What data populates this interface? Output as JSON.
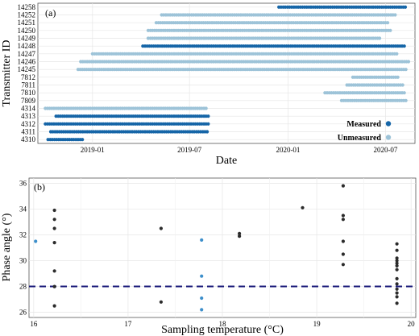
{
  "colors": {
    "measured": "#1565a7",
    "unmeasured": "#9dc3d8",
    "black_point": "#2b2b2b",
    "blue_point": "#3d8fcb",
    "grid": "#e6e6e6",
    "hline": "#1a1a7a"
  },
  "chart_data": [
    {
      "type": "scatter",
      "panel_label": "(a)",
      "xlabel": "Date",
      "ylabel": "Transmitter ID",
      "x_ticks": [
        "2019-01",
        "2019-07",
        "2020-01",
        "2020-07"
      ],
      "x_tick_dates": [
        "2019-01-01",
        "2019-07-01",
        "2020-01-01",
        "2020-07-01"
      ],
      "xlim": [
        "2018-09-21",
        "2020-08-25"
      ],
      "y_categories": [
        "4310",
        "4311",
        "4312",
        "4313",
        "4314",
        "7809",
        "7810",
        "7811",
        "7812",
        "14245",
        "14246",
        "14247",
        "14248",
        "14249",
        "14250",
        "14251",
        "14252",
        "14258"
      ],
      "legend": {
        "position": "bottom-right",
        "entries": [
          "Measured",
          "Unmeasured"
        ]
      },
      "series": [
        {
          "name": "Measured",
          "segments": [
            {
              "id": "14258",
              "from": "2019-12-15",
              "to": "2020-08-10"
            },
            {
              "id": "14248",
              "from": "2019-04-05",
              "to": "2020-08-08"
            },
            {
              "id": "4313",
              "from": "2018-10-25",
              "to": "2019-08-05"
            },
            {
              "id": "4312",
              "from": "2018-10-05",
              "to": "2019-08-05"
            },
            {
              "id": "4311",
              "from": "2018-10-15",
              "to": "2019-08-05"
            },
            {
              "id": "4310",
              "from": "2018-10-10",
              "to": "2018-12-15"
            }
          ]
        },
        {
          "name": "Unmeasured",
          "segments": [
            {
              "id": "14252",
              "from": "2019-05-10",
              "to": "2020-07-20"
            },
            {
              "id": "14251",
              "from": "2019-04-30",
              "to": "2020-07-05"
            },
            {
              "id": "14250",
              "from": "2019-04-15",
              "to": "2020-07-10"
            },
            {
              "id": "14249",
              "from": "2019-04-15",
              "to": "2020-06-20"
            },
            {
              "id": "14247",
              "from": "2019-01-01",
              "to": "2020-07-25"
            },
            {
              "id": "14246",
              "from": "2018-12-10",
              "to": "2020-08-15"
            },
            {
              "id": "14245",
              "from": "2018-12-05",
              "to": "2020-08-10"
            },
            {
              "id": "7812",
              "from": "2020-05-01",
              "to": "2020-07-25"
            },
            {
              "id": "7811",
              "from": "2020-04-20",
              "to": "2020-08-05"
            },
            {
              "id": "7810",
              "from": "2020-03-10",
              "to": "2020-08-05"
            },
            {
              "id": "7809",
              "from": "2020-04-10",
              "to": "2020-08-10"
            },
            {
              "id": "4314",
              "from": "2018-10-05",
              "to": "2019-08-01"
            }
          ]
        }
      ]
    },
    {
      "type": "scatter",
      "panel_label": "(b)",
      "xlabel": "Sampling temperature (°C)",
      "ylabel": "Phase angle (°)",
      "xlim": [
        15.95,
        20.05
      ],
      "ylim": [
        25.6,
        36.4
      ],
      "x_ticks": [
        "16",
        "17",
        "18",
        "19",
        "20"
      ],
      "y_ticks": [
        "26",
        "28",
        "30",
        "32",
        "34",
        "36"
      ],
      "hline": 28,
      "series": [
        {
          "name": "",
          "points": [
            [
              16.22,
              33.9
            ],
            [
              16.22,
              33.2
            ],
            [
              16.22,
              32.5
            ],
            [
              16.22,
              31.4
            ],
            [
              16.22,
              29.2
            ],
            [
              16.22,
              28.0
            ],
            [
              16.22,
              26.5
            ],
            [
              17.35,
              32.5
            ],
            [
              17.35,
              26.8
            ],
            [
              18.18,
              32.1
            ],
            [
              18.18,
              31.9
            ],
            [
              18.85,
              34.1
            ],
            [
              19.28,
              35.8
            ],
            [
              19.28,
              33.5
            ],
            [
              19.28,
              33.2
            ],
            [
              19.28,
              31.5
            ],
            [
              19.28,
              30.5
            ],
            [
              19.28,
              29.7
            ],
            [
              19.85,
              31.3
            ],
            [
              19.85,
              30.8
            ],
            [
              19.85,
              30.2
            ],
            [
              19.85,
              30.0
            ],
            [
              19.85,
              29.8
            ],
            [
              19.85,
              29.6
            ],
            [
              19.85,
              29.3
            ],
            [
              19.85,
              28.6
            ],
            [
              19.85,
              28.2
            ],
            [
              19.85,
              27.8
            ],
            [
              19.85,
              27.5
            ],
            [
              19.85,
              27.2
            ],
            [
              19.85,
              26.7
            ]
          ]
        },
        {
          "name": "",
          "points": [
            [
              16.02,
              31.5
            ],
            [
              17.78,
              31.6
            ],
            [
              17.78,
              28.8
            ],
            [
              17.78,
              27.1
            ],
            [
              17.78,
              26.2
            ]
          ]
        }
      ]
    }
  ]
}
